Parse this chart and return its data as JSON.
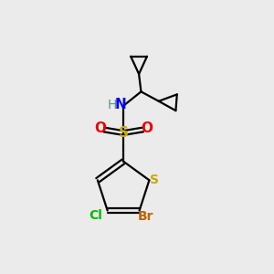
{
  "bg_color": "#ebebeb",
  "colors": {
    "C": "#000000",
    "H": "#5f8f8f",
    "N": "#0000ee",
    "O": "#ee0000",
    "S_yellow": "#ccaa00",
    "Cl": "#00bb00",
    "Br": "#bb6600"
  },
  "lw": 1.6,
  "ring_r": 1.0,
  "cp_r": 0.52
}
